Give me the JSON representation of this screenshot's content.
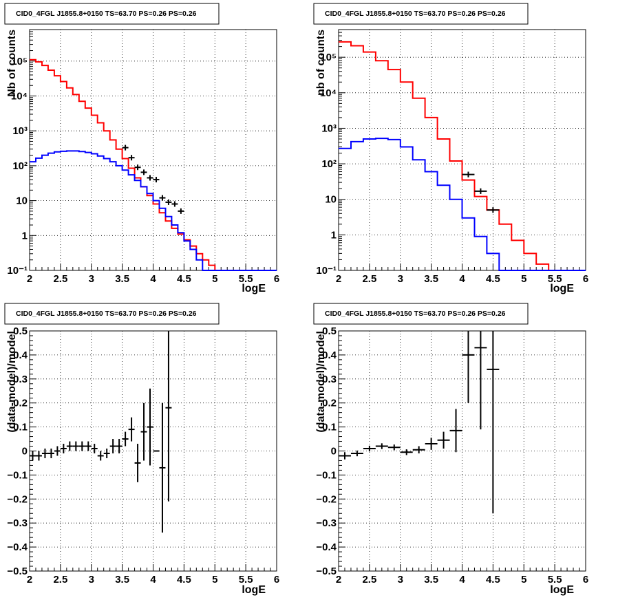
{
  "chart_data": [
    {
      "id": "top-left",
      "type": "line",
      "title": "CID0_4FGL J1855.8+0150 TS=63.70 PS=0.26 PS=0.26",
      "xlabel": "logE",
      "ylabel": "Nb of counts",
      "xlim": [
        2,
        6
      ],
      "ylim": [
        0.1,
        800000
      ],
      "log_y": true,
      "grid": true,
      "x_ticks": [
        "2",
        "2.5",
        "3",
        "3.5",
        "4",
        "4.5",
        "5",
        "5.5",
        "6"
      ],
      "y_ticks": [
        "10⁻¹",
        "1",
        "10",
        "10²",
        "10³",
        "10⁴",
        "10⁵"
      ],
      "series": [
        {
          "color": "#ff0000",
          "kind": "step",
          "edges": [
            2.0,
            2.1,
            2.2,
            2.3,
            2.4,
            2.5,
            2.6,
            2.7,
            2.8,
            2.9,
            3.0,
            3.1,
            3.2,
            3.3,
            3.4,
            3.5,
            3.6,
            3.7,
            3.8,
            3.9,
            4.0,
            4.1,
            4.2,
            4.3,
            4.4,
            4.5,
            4.6,
            4.7,
            4.8,
            4.9,
            5.0,
            5.1,
            5.2,
            5.3,
            5.4,
            5.5,
            5.6,
            5.7,
            5.8,
            5.9,
            6.0
          ],
          "values": [
            110000,
            95000,
            75000,
            55000,
            38000,
            26000,
            17000,
            11000,
            7000,
            4500,
            2800,
            1700,
            1000,
            550,
            300,
            160,
            85,
            45,
            25,
            14,
            8,
            4.5,
            2.6,
            1.6,
            1.1,
            0.75,
            0.5,
            0.3,
            0.2,
            0.14,
            0.1,
            0.1,
            0.1,
            0.1,
            0.1,
            0.1,
            0.1,
            0.1,
            0.1,
            0.1
          ]
        },
        {
          "color": "#0000ff",
          "kind": "step",
          "edges": [
            2.0,
            2.1,
            2.2,
            2.3,
            2.4,
            2.5,
            2.6,
            2.7,
            2.8,
            2.9,
            3.0,
            3.1,
            3.2,
            3.3,
            3.4,
            3.5,
            3.6,
            3.7,
            3.8,
            3.9,
            4.0,
            4.1,
            4.2,
            4.3,
            4.4,
            4.5,
            4.6,
            4.7,
            4.8,
            4.9,
            5.0,
            5.1,
            5.2,
            5.3,
            5.4,
            5.5,
            5.6,
            5.7,
            5.8,
            5.9,
            6.0
          ],
          "values": [
            130,
            165,
            200,
            230,
            250,
            260,
            265,
            265,
            255,
            240,
            220,
            190,
            160,
            130,
            100,
            75,
            55,
            38,
            25,
            16,
            10,
            6,
            3.5,
            2,
            1.2,
            0.7,
            0.4,
            0.2,
            0.1,
            0.1,
            0.1,
            0.1,
            0.1,
            0.1,
            0.1,
            0.1,
            0.1,
            0.1,
            0.1,
            0.1
          ]
        },
        {
          "color": "#000000",
          "kind": "points",
          "x": [
            3.55,
            3.65,
            3.75,
            3.85,
            3.95,
            4.05,
            4.15,
            4.25,
            4.35,
            4.45
          ],
          "y": [
            330,
            170,
            90,
            65,
            45,
            40,
            12,
            9,
            8,
            5
          ],
          "xerr": 0.05
        }
      ]
    },
    {
      "id": "top-right",
      "type": "line",
      "title": "CID0_4FGL J1855.8+0150 TS=63.70 PS=0.26 PS=0.26",
      "xlabel": "logE",
      "ylabel": "nb of counts",
      "xlim": [
        2,
        6
      ],
      "ylim": [
        0.1,
        600000
      ],
      "log_y": true,
      "grid": true,
      "x_ticks": [
        "2",
        "2.5",
        "3",
        "3.5",
        "4",
        "4.5",
        "5",
        "5.5",
        "6"
      ],
      "y_ticks": [
        "10⁻¹",
        "1",
        "10",
        "10²",
        "10³",
        "10⁴",
        "10⁵"
      ],
      "series": [
        {
          "color": "#ff0000",
          "kind": "step",
          "edges": [
            2.0,
            2.2,
            2.4,
            2.6,
            2.8,
            3.0,
            3.2,
            3.4,
            3.6,
            3.8,
            4.0,
            4.2,
            4.4,
            4.6,
            4.8,
            5.0,
            5.2,
            5.4,
            5.6,
            5.8,
            6.0
          ],
          "values": [
            270000,
            210000,
            140000,
            80000,
            45000,
            20000,
            7000,
            2000,
            500,
            120,
            35,
            12,
            5,
            2,
            0.7,
            0.3,
            0.15,
            0.1,
            0.1,
            0.1
          ]
        },
        {
          "color": "#0000ff",
          "kind": "step",
          "edges": [
            2.0,
            2.2,
            2.4,
            2.6,
            2.8,
            3.0,
            3.2,
            3.4,
            3.6,
            3.8,
            4.0,
            4.2,
            4.4,
            4.6,
            4.8,
            5.0,
            5.2,
            5.4,
            5.6,
            5.8,
            6.0
          ],
          "values": [
            270,
            420,
            500,
            520,
            480,
            300,
            130,
            60,
            25,
            10,
            3,
            0.9,
            0.3,
            0.1,
            0.1,
            0.1,
            0.1,
            0.1,
            0.1,
            0.1
          ]
        },
        {
          "color": "#000000",
          "kind": "points",
          "x": [
            4.1,
            4.3,
            4.5
          ],
          "y": [
            50,
            17,
            5
          ],
          "xerr": 0.1
        }
      ]
    },
    {
      "id": "bottom-left",
      "type": "scatter",
      "title": "CID0_4FGL J1855.8+0150 TS=63.70 PS=0.26 PS=0.26",
      "xlabel": "logE",
      "ylabel": "(data-model)/model",
      "xlim": [
        2,
        6
      ],
      "ylim": [
        -0.5,
        0.5
      ],
      "log_y": false,
      "grid": true,
      "x_ticks": [
        "2",
        "2.5",
        "3",
        "3.5",
        "4",
        "4.5",
        "5",
        "5.5",
        "6"
      ],
      "y_ticks": [
        "−0.5",
        "−0.4",
        "−0.3",
        "−0.2",
        "−0.1",
        "0",
        "0.1",
        "0.2",
        "0.3",
        "0.4",
        "0.5"
      ],
      "series": [
        {
          "color": "#000000",
          "kind": "points",
          "x": [
            2.05,
            2.15,
            2.25,
            2.35,
            2.45,
            2.55,
            2.65,
            2.75,
            2.85,
            2.95,
            3.05,
            3.15,
            3.25,
            3.35,
            3.45,
            3.55,
            3.65,
            3.75,
            3.85,
            3.95,
            4.05,
            4.15,
            4.25
          ],
          "y": [
            -0.02,
            -0.02,
            -0.01,
            -0.01,
            0.0,
            0.01,
            0.02,
            0.02,
            0.02,
            0.02,
            0.01,
            -0.02,
            -0.01,
            0.02,
            0.02,
            0.05,
            0.09,
            -0.05,
            0.08,
            0.1,
            0.0,
            -0.07,
            0.18
          ],
          "yerr": [
            0.02,
            0.02,
            0.02,
            0.02,
            0.02,
            0.02,
            0.02,
            0.02,
            0.02,
            0.02,
            0.02,
            0.02,
            0.02,
            0.03,
            0.03,
            0.03,
            0.05,
            0.08,
            0.12,
            0.16,
            0.0,
            0.27,
            0.39
          ],
          "xerr": 0.05
        }
      ]
    },
    {
      "id": "bottom-right",
      "type": "scatter",
      "title": "CID0_4FGL J1855.8+0150 TS=63.70 PS=0.26 PS=0.26",
      "xlabel": "logE",
      "ylabel": "(data-model)/model",
      "xlim": [
        2,
        6
      ],
      "ylim": [
        -0.5,
        0.5
      ],
      "log_y": false,
      "grid": true,
      "x_ticks": [
        "2",
        "2.5",
        "3",
        "3.5",
        "4",
        "4.5",
        "5",
        "5.5",
        "6"
      ],
      "y_ticks": [
        "−0.5",
        "−0.4",
        "−0.3",
        "−0.2",
        "−0.1",
        "0",
        "0.1",
        "0.2",
        "0.3",
        "0.4",
        "0.5"
      ],
      "series": [
        {
          "color": "#000000",
          "kind": "points",
          "x": [
            2.1,
            2.3,
            2.5,
            2.7,
            2.9,
            3.1,
            3.3,
            3.5,
            3.7,
            3.9,
            4.1,
            4.3,
            4.5
          ],
          "y": [
            -0.02,
            -0.01,
            0.01,
            0.02,
            0.015,
            -0.005,
            0.005,
            0.03,
            0.045,
            0.085,
            0.4,
            0.43,
            0.34
          ],
          "yerr": [
            0.015,
            0.012,
            0.012,
            0.012,
            0.012,
            0.012,
            0.015,
            0.025,
            0.035,
            0.09,
            0.2,
            0.34,
            0.6
          ],
          "xerr": 0.1
        }
      ]
    }
  ]
}
